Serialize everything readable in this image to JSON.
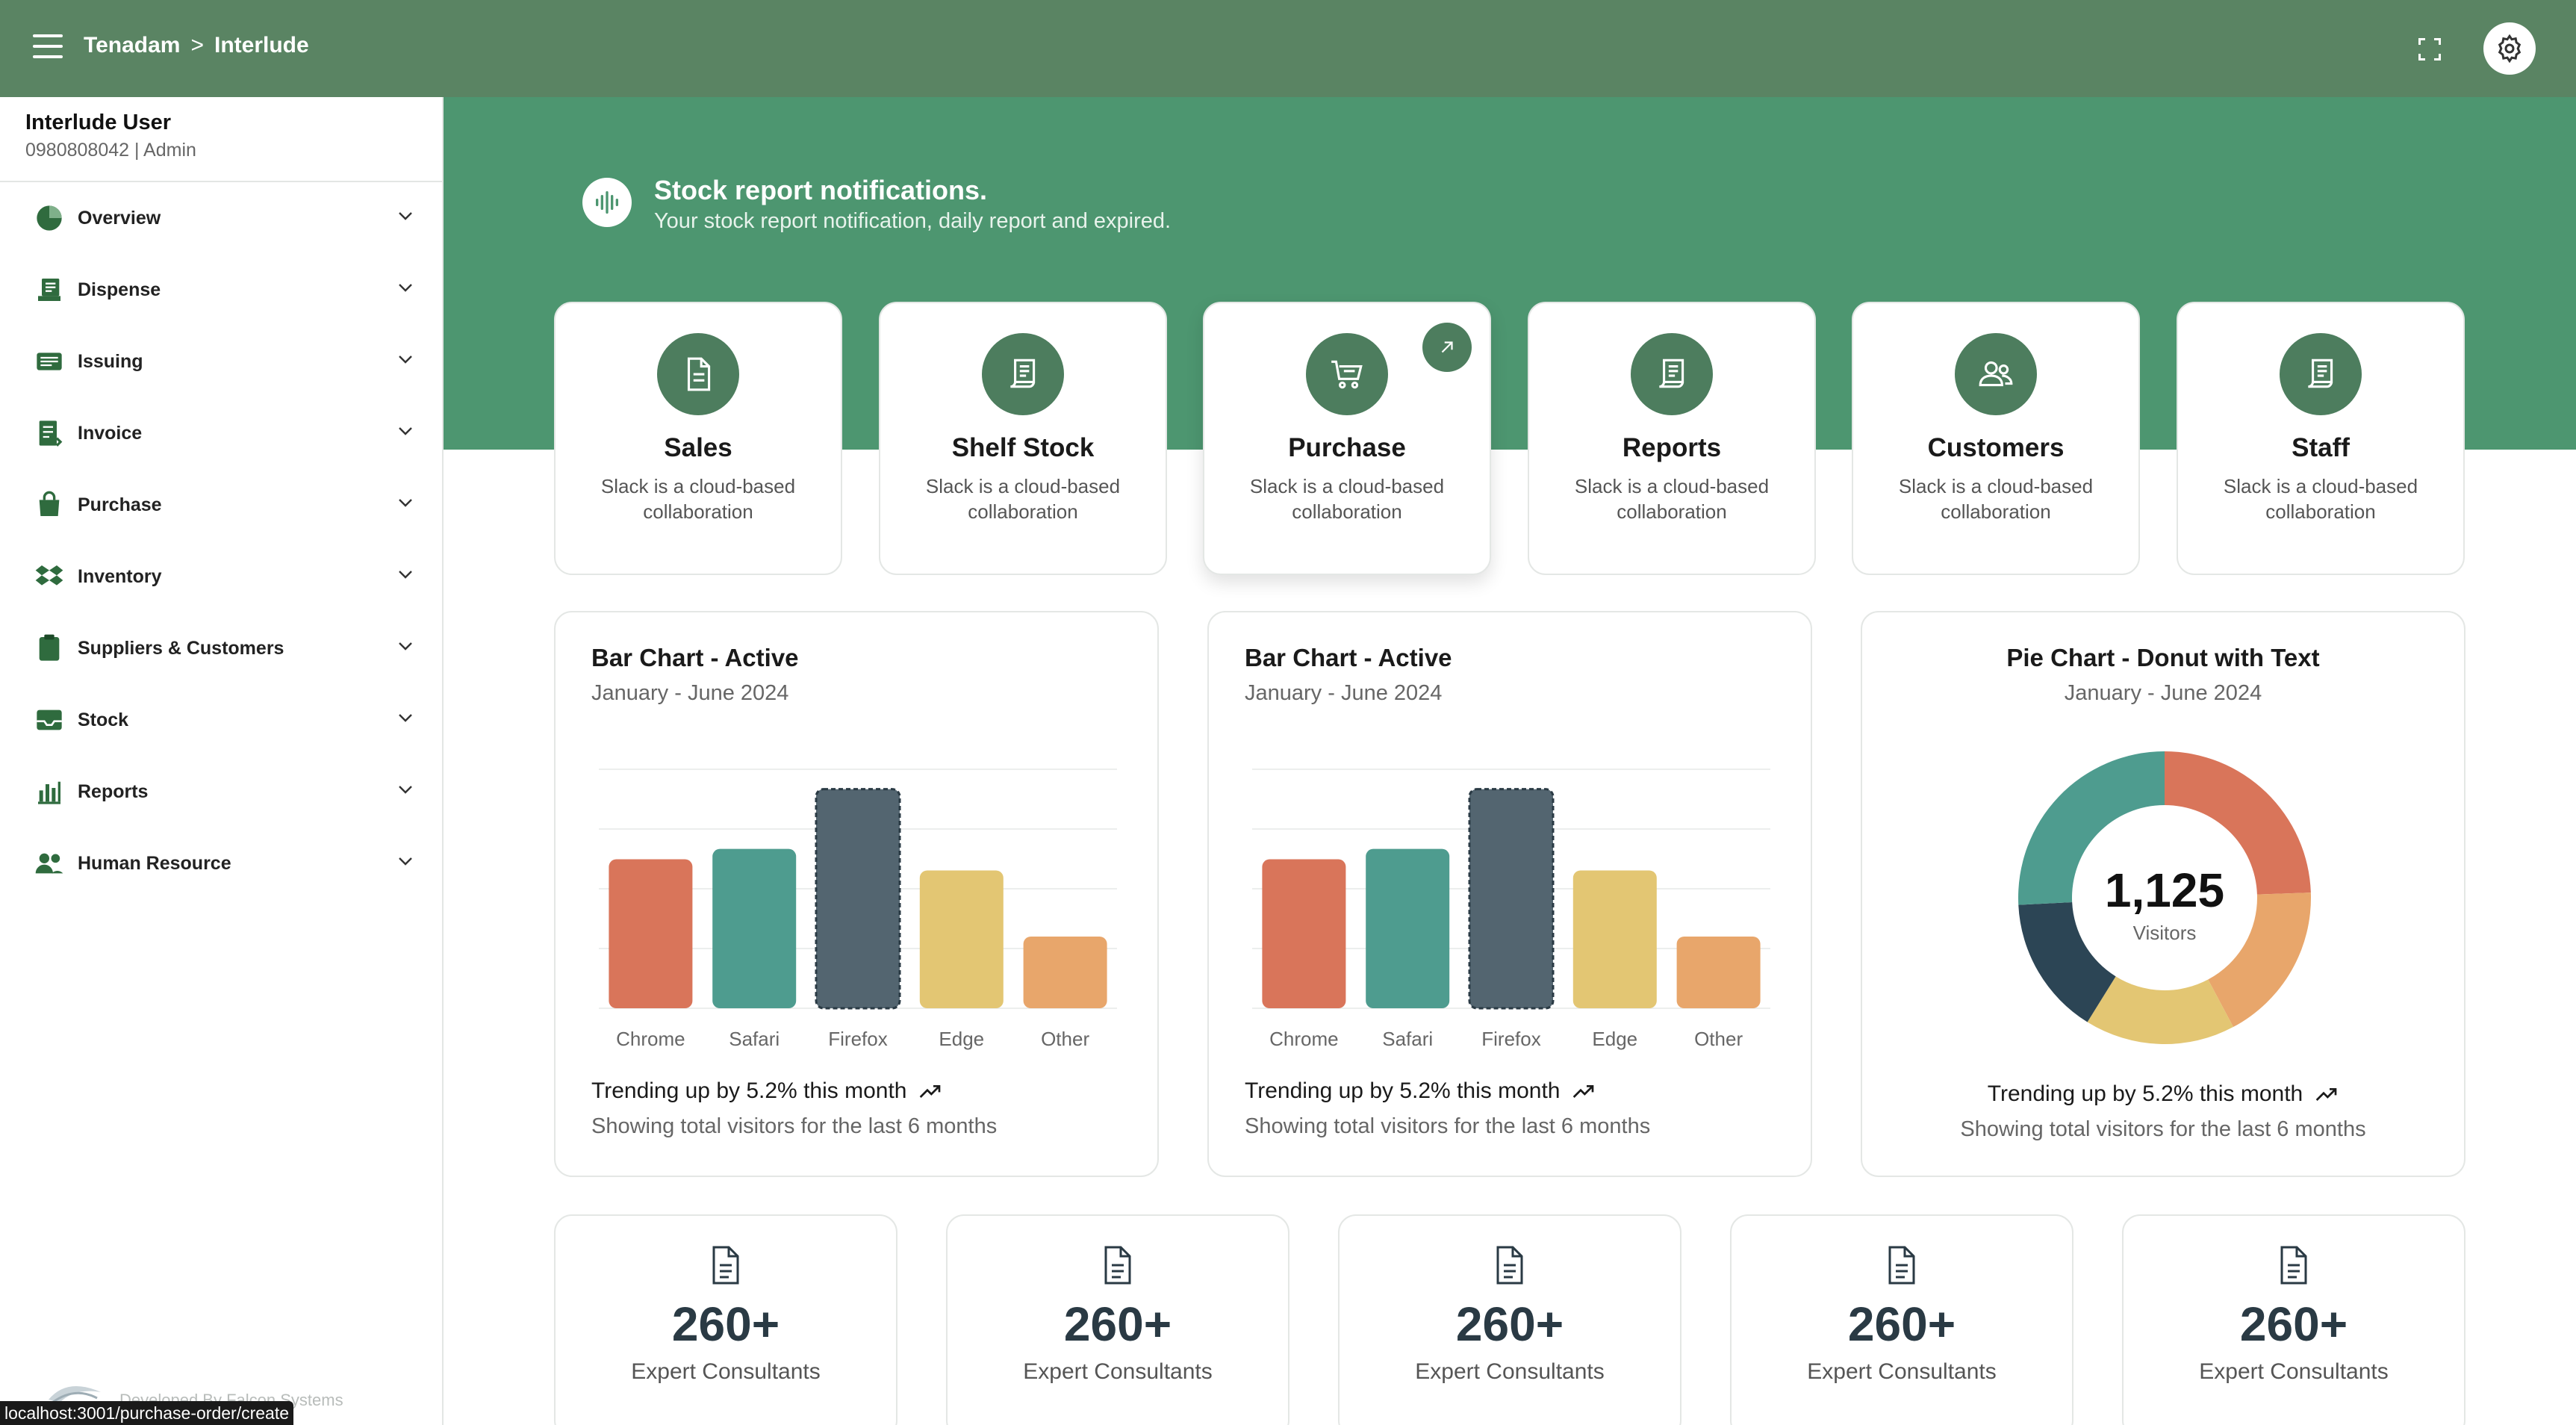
{
  "topbar": {
    "breadcrumb": [
      "Tenadam",
      "Interlude"
    ],
    "breadcrumb_sep": ">"
  },
  "user": {
    "name": "Interlude User",
    "meta": "0980808042 | Admin"
  },
  "sidebar": {
    "items": [
      {
        "label": "Overview",
        "icon": "pie-chart-icon"
      },
      {
        "label": "Dispense",
        "icon": "dispense-icon"
      },
      {
        "label": "Issuing",
        "icon": "issuing-icon"
      },
      {
        "label": "Invoice",
        "icon": "invoice-icon"
      },
      {
        "label": "Purchase",
        "icon": "shopping-bag-icon"
      },
      {
        "label": "Inventory",
        "icon": "inventory-icon"
      },
      {
        "label": "Suppliers & Customers",
        "icon": "clipboard-icon"
      },
      {
        "label": "Stock",
        "icon": "inbox-icon"
      },
      {
        "label": "Reports",
        "icon": "bar-chart-icon"
      },
      {
        "label": "Human Resource",
        "icon": "people-icon"
      }
    ],
    "dev_credit": "Developed By Falcon Systems"
  },
  "status_url": "localhost:3001/purchase-order/create",
  "notification": {
    "title": "Stock report notifications.",
    "subtitle": "Your stock report notification, daily report and expired."
  },
  "cards": [
    {
      "title": "Sales",
      "desc": "Slack is a cloud-based collaboration",
      "icon": "document-icon"
    },
    {
      "title": "Shelf Stock",
      "desc": "Slack is a cloud-based collaboration",
      "icon": "receipt-icon"
    },
    {
      "title": "Purchase",
      "desc": "Slack is a cloud-based collaboration",
      "icon": "cart-icon",
      "active": true
    },
    {
      "title": "Reports",
      "desc": "Slack is a cloud-based collaboration",
      "icon": "receipt-icon"
    },
    {
      "title": "Customers",
      "desc": "Slack is a cloud-based collaboration",
      "icon": "users-icon"
    },
    {
      "title": "Staff",
      "desc": "Slack is a cloud-based collaboration",
      "icon": "receipt-icon"
    }
  ],
  "charts": {
    "bar1": {
      "title": "Bar Chart - Active",
      "subtitle": "January - June 2024",
      "trend": "Trending up by 5.2% this month",
      "foot": "Showing total visitors for the last 6 months"
    },
    "bar2": {
      "title": "Bar Chart - Active",
      "subtitle": "January - June 2024",
      "trend": "Trending up by 5.2% this month",
      "foot": "Showing total visitors for the last 6 months"
    },
    "pie": {
      "title": "Pie Chart - Donut with Text",
      "subtitle": "January - June 2024",
      "center_value": "1,125",
      "center_label": "Visitors",
      "trend": "Trending up by 5.2% this month",
      "foot": "Showing total visitors for the last 6 months"
    }
  },
  "chart_data": [
    {
      "type": "bar",
      "title": "Bar Chart - Active",
      "subtitle": "January - June 2024",
      "categories": [
        "Chrome",
        "Safari",
        "Firefox",
        "Edge",
        "Other"
      ],
      "values": [
        187,
        200,
        275,
        173,
        90
      ],
      "active_index": 2,
      "colors": [
        "#d9755a",
        "#4e9c8f",
        "#536570",
        "#e3c673",
        "#e8a66b"
      ],
      "ylim": [
        0,
        300
      ],
      "grid": true
    },
    {
      "type": "bar",
      "title": "Bar Chart - Active",
      "subtitle": "January - June 2024",
      "categories": [
        "Chrome",
        "Safari",
        "Firefox",
        "Edge",
        "Other"
      ],
      "values": [
        187,
        200,
        275,
        173,
        90
      ],
      "active_index": 2,
      "colors": [
        "#d9755a",
        "#4e9c8f",
        "#536570",
        "#e3c673",
        "#e8a66b"
      ],
      "ylim": [
        0,
        300
      ],
      "grid": true
    },
    {
      "type": "pie",
      "title": "Pie Chart - Donut with Text",
      "subtitle": "January - June 2024",
      "categories": [
        "Chrome",
        "Safari",
        "Firefox",
        "Edge",
        "Other"
      ],
      "values": [
        275,
        200,
        187,
        173,
        290
      ],
      "colors": [
        "#d9755a",
        "#e8a66b",
        "#e3c673",
        "#2c4555",
        "#4e9c8f"
      ],
      "total": 1125
    }
  ],
  "stats": [
    {
      "value": "260+",
      "label": "Expert Consultants"
    },
    {
      "value": "260+",
      "label": "Expert Consultants"
    },
    {
      "value": "260+",
      "label": "Expert Consultants"
    },
    {
      "value": "260+",
      "label": "Expert Consultants"
    },
    {
      "value": "260+",
      "label": "Expert Consultants"
    }
  ],
  "colors": {
    "topbar": "#5a8463",
    "hero": "#4d9670",
    "icon_bg": "#4d7d5e"
  }
}
